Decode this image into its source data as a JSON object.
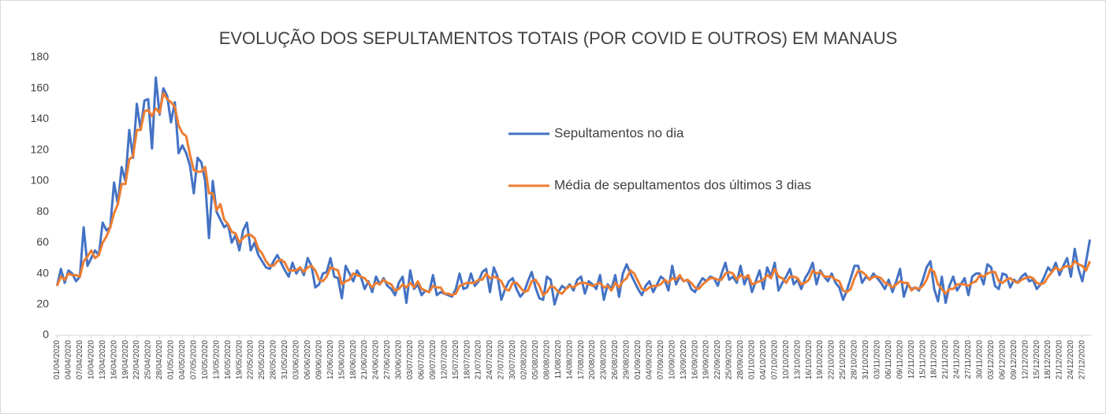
{
  "chart_data": {
    "type": "line",
    "title": "EVOLUÇÃO DOS SEPULTAMENTOS TOTAIS (POR COVID E OUTROS) EM MANAUS",
    "ylim": [
      0,
      180
    ],
    "yticks": [
      0,
      20,
      40,
      60,
      80,
      100,
      120,
      140,
      160,
      180
    ],
    "grid": false,
    "categories": [
      "01/04/2020",
      null,
      null,
      "04/04/2020",
      null,
      null,
      "07/04/2020",
      null,
      null,
      "10/04/2020",
      null,
      null,
      "13/04/2020",
      null,
      null,
      "16/04/2020",
      null,
      null,
      "19/04/2020",
      null,
      null,
      "22/04/2020",
      null,
      null,
      "25/04/2020",
      null,
      null,
      "28/04/2020",
      null,
      null,
      "01/05/2020",
      null,
      null,
      "04/05/2020",
      null,
      null,
      "07/05/2020",
      null,
      null,
      "10/05/2020",
      null,
      null,
      "13/05/2020",
      null,
      null,
      "16/05/2020",
      null,
      null,
      "19/05/2020",
      null,
      null,
      "22/05/2020",
      null,
      null,
      "25/05/2020",
      null,
      null,
      "28/05/2020",
      null,
      null,
      "31/05/2020",
      null,
      null,
      "03/06/2020",
      null,
      null,
      "06/06/2020",
      null,
      null,
      "09/06/2020",
      null,
      null,
      "12/06/2020",
      null,
      null,
      "15/06/2020",
      null,
      null,
      "18/06/2020",
      null,
      null,
      "21/06/2020",
      null,
      null,
      "24/06/2020",
      null,
      null,
      "27/06/2020",
      null,
      null,
      "30/06/2020",
      null,
      null,
      "03/07/2020",
      null,
      null,
      "06/07/2020",
      null,
      null,
      "09/07/2020",
      null,
      null,
      "12/07/2020",
      null,
      null,
      "15/07/2020",
      null,
      null,
      "18/07/2020",
      null,
      null,
      "21/07/2020",
      null,
      null,
      "24/07/2020",
      null,
      null,
      "27/07/2020",
      null,
      null,
      "30/07/2020",
      null,
      null,
      "02/08/2020",
      null,
      null,
      "05/08/2020",
      null,
      null,
      "08/08/2020",
      null,
      null,
      "11/08/2020",
      null,
      null,
      "14/08/2020",
      null,
      null,
      "17/08/2020",
      null,
      null,
      "20/08/2020",
      null,
      null,
      "23/08/2020",
      null,
      null,
      "26/08/2020",
      null,
      null,
      "29/08/2020",
      null,
      null,
      "01/09/2020",
      null,
      null,
      "04/09/2020",
      null,
      null,
      "07/09/2020",
      null,
      null,
      "10/09/2020",
      null,
      null,
      "13/09/2020",
      null,
      null,
      "16/09/2020",
      null,
      null,
      "19/09/2020",
      null,
      null,
      "22/09/2020",
      null,
      null,
      "25/09/2020",
      null,
      null,
      "28/09/2020",
      null,
      null,
      "01/10/2020",
      null,
      null,
      "04/10/2020",
      null,
      null,
      "07/10/2020",
      null,
      null,
      "10/10/2020",
      null,
      null,
      "13/10/2020",
      null,
      null,
      "16/10/2020",
      null,
      null,
      "19/10/2020",
      null,
      null,
      "22/10/2020",
      null,
      null,
      "25/10/2020",
      null,
      null,
      "28/10/2020",
      null,
      null,
      "31/10/2020",
      null,
      null,
      "03/11/2020",
      null,
      null,
      "06/11/2020",
      null,
      null,
      "09/11/2020",
      null,
      null,
      "12/11/2020",
      null,
      null,
      "15/11/2020",
      null,
      null,
      "18/11/2020",
      null,
      null,
      "21/11/2020",
      null,
      null,
      "24/11/2020",
      null,
      null,
      "27/11/2020",
      null,
      null,
      "30/11/2020",
      null,
      null,
      "03/12/2020",
      null,
      null,
      "06/12/2020",
      null,
      null,
      "09/12/2020",
      null,
      null,
      "12/12/2020",
      null,
      null,
      "15/12/2020",
      null,
      null,
      "18/12/2020",
      null,
      null,
      "21/12/2020",
      null,
      null,
      "24/12/2020",
      null,
      null,
      "27/12/2020",
      null,
      null
    ],
    "series": [
      {
        "name": "Sepultamentos no dia",
        "color": "#4472c4",
        "values": [
          32,
          43,
          34,
          42,
          40,
          35,
          38,
          70,
          45,
          50,
          55,
          52,
          73,
          68,
          70,
          99,
          85,
          109,
          100,
          133,
          115,
          150,
          133,
          152,
          153,
          121,
          167,
          143,
          160,
          155,
          138,
          151,
          118,
          123,
          118,
          110,
          92,
          115,
          112,
          100,
          63,
          100,
          80,
          75,
          70,
          72,
          60,
          65,
          55,
          68,
          73,
          55,
          60,
          52,
          48,
          44,
          43,
          48,
          52,
          47,
          42,
          38,
          47,
          40,
          44,
          39,
          50,
          45,
          31,
          33,
          40,
          41,
          50,
          38,
          37,
          24,
          45,
          40,
          35,
          42,
          38,
          30,
          35,
          28,
          38,
          33,
          37,
          32,
          30,
          26,
          34,
          38,
          21,
          42,
          30,
          33,
          26,
          29,
          28,
          39,
          26,
          28,
          27,
          26,
          25,
          30,
          40,
          30,
          31,
          40,
          32,
          35,
          41,
          43,
          28,
          44,
          38,
          23,
          30,
          35,
          37,
          30,
          25,
          28,
          35,
          41,
          31,
          24,
          23,
          38,
          36,
          20,
          28,
          32,
          30,
          33,
          29,
          36,
          38,
          27,
          35,
          33,
          30,
          39,
          23,
          33,
          30,
          39,
          25,
          40,
          46,
          40,
          35,
          30,
          26,
          32,
          35,
          28,
          33,
          38,
          36,
          29,
          45,
          33,
          38,
          35,
          36,
          30,
          28,
          33,
          37,
          35,
          38,
          37,
          32,
          40,
          47,
          36,
          38,
          34,
          45,
          33,
          39,
          28,
          35,
          42,
          30,
          44,
          38,
          47,
          29,
          34,
          38,
          43,
          33,
          36,
          30,
          37,
          41,
          47,
          33,
          42,
          38,
          35,
          40,
          34,
          31,
          23,
          29,
          37,
          45,
          45,
          34,
          38,
          36,
          40,
          37,
          34,
          30,
          36,
          28,
          35,
          43,
          25,
          33,
          30,
          31,
          29,
          36,
          44,
          48,
          30,
          22,
          38,
          21,
          32,
          38,
          29,
          33,
          37,
          26,
          38,
          40,
          40,
          33,
          46,
          44,
          32,
          30,
          40,
          39,
          31,
          36,
          34,
          38,
          40,
          35,
          36,
          30,
          33,
          38,
          44,
          41,
          47,
          39,
          45,
          50,
          38,
          56,
          43,
          35,
          48,
          62
        ]
      },
      {
        "name": "Média de sepultamentos dos últimos 3 dias",
        "color": "#ed7d31",
        "values": [
          32,
          38,
          36,
          40,
          39,
          39,
          38,
          48,
          51,
          55,
          50,
          52,
          60,
          64,
          70,
          79,
          85,
          98,
          98,
          114,
          116,
          133,
          133,
          145,
          146,
          142,
          147,
          144,
          157,
          153,
          151,
          148,
          136,
          131,
          129,
          117,
          107,
          106,
          106,
          109,
          92,
          92,
          81,
          85,
          75,
          72,
          67,
          66,
          60,
          63,
          65,
          65,
          63,
          56,
          53,
          48,
          45,
          45,
          48,
          49,
          47,
          42,
          42,
          42,
          44,
          41,
          44,
          45,
          42,
          36,
          35,
          38,
          44,
          43,
          42,
          33,
          35,
          36,
          40,
          39,
          38,
          37,
          34,
          31,
          34,
          33,
          36,
          34,
          33,
          29,
          30,
          33,
          31,
          34,
          31,
          35,
          30,
          29,
          28,
          32,
          31,
          31,
          27,
          27,
          26,
          27,
          32,
          33,
          34,
          34,
          34,
          36,
          36,
          40,
          37,
          38,
          37,
          35,
          30,
          29,
          34,
          34,
          31,
          28,
          29,
          35,
          36,
          32,
          26,
          28,
          32,
          31,
          28,
          27,
          30,
          32,
          31,
          33,
          34,
          34,
          33,
          32,
          33,
          34,
          31,
          32,
          29,
          34,
          31,
          35,
          37,
          42,
          40,
          35,
          30,
          29,
          31,
          32,
          32,
          33,
          36,
          34,
          37,
          36,
          39,
          35,
          36,
          34,
          31,
          30,
          33,
          35,
          37,
          37,
          36,
          36,
          40,
          41,
          40,
          36,
          39,
          37,
          39,
          33,
          34,
          35,
          36,
          39,
          37,
          43,
          38,
          37,
          34,
          38,
          38,
          37,
          33,
          34,
          36,
          42,
          40,
          41,
          38,
          38,
          38,
          36,
          35,
          29,
          28,
          30,
          37,
          42,
          41,
          39,
          36,
          38,
          38,
          37,
          34,
          33,
          31,
          33,
          35,
          34,
          34,
          29,
          31,
          30,
          32,
          36,
          43,
          41,
          33,
          30,
          27,
          30,
          30,
          33,
          33,
          33,
          32,
          34,
          35,
          39,
          38,
          40,
          41,
          41,
          35,
          34,
          36,
          37,
          35,
          34,
          36,
          37,
          38,
          37,
          34,
          33,
          34,
          38,
          41,
          44,
          42,
          44,
          45,
          44,
          48,
          46,
          45,
          42,
          48
        ]
      }
    ]
  }
}
